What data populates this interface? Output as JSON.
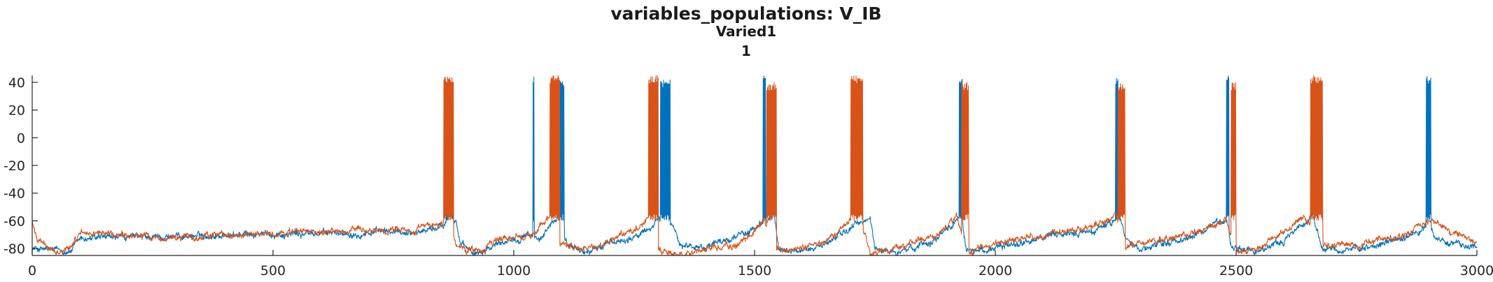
{
  "chart_data": {
    "type": "line",
    "title": "variables_populations: V_IB",
    "subtitle": "Varied1",
    "subtitle2": "1",
    "xlabel": "",
    "ylabel": "",
    "xlim": [
      0,
      3000
    ],
    "ylim": [
      -85,
      45
    ],
    "x_ticks": [
      "0",
      "500",
      "1000",
      "1500",
      "2000",
      "2500",
      "3000"
    ],
    "y_ticks": [
      "40",
      "20",
      "0",
      "-20",
      "-40",
      "-60",
      "-80"
    ],
    "grid": false,
    "legend": "none",
    "series": [
      {
        "color": "#0072bd",
        "baseline": [
          [
            0,
            -80
          ],
          [
            80,
            -82
          ],
          [
            100,
            -73
          ],
          [
            300,
            -71
          ],
          [
            600,
            -69
          ],
          [
            800,
            -68
          ],
          [
            850,
            -64
          ],
          [
            870,
            -57
          ],
          [
            880,
            -60
          ],
          [
            890,
            -78
          ],
          [
            920,
            -83
          ],
          [
            980,
            -74
          ],
          [
            1040,
            -71
          ],
          [
            1060,
            -73
          ],
          [
            1080,
            -62
          ],
          [
            1095,
            -57
          ],
          [
            1110,
            -77
          ],
          [
            1150,
            -83
          ],
          [
            1200,
            -76
          ],
          [
            1260,
            -71
          ],
          [
            1300,
            -60
          ],
          [
            1330,
            -63
          ],
          [
            1350,
            -78
          ],
          [
            1400,
            -79
          ],
          [
            1500,
            -66
          ],
          [
            1540,
            -56
          ],
          [
            1550,
            -80
          ],
          [
            1600,
            -82
          ],
          [
            1650,
            -76
          ],
          [
            1700,
            -65
          ],
          [
            1740,
            -58
          ],
          [
            1750,
            -80
          ],
          [
            1800,
            -83
          ],
          [
            1880,
            -72
          ],
          [
            1930,
            -56
          ],
          [
            1940,
            -82
          ],
          [
            2000,
            -80
          ],
          [
            2100,
            -72
          ],
          [
            2200,
            -68
          ],
          [
            2260,
            -58
          ],
          [
            2270,
            -72
          ],
          [
            2300,
            -81
          ],
          [
            2400,
            -72
          ],
          [
            2480,
            -58
          ],
          [
            2490,
            -78
          ],
          [
            2550,
            -82
          ],
          [
            2600,
            -74
          ],
          [
            2660,
            -56
          ],
          [
            2680,
            -80
          ],
          [
            2750,
            -82
          ],
          [
            2850,
            -72
          ],
          [
            2900,
            -64
          ],
          [
            2920,
            -74
          ],
          [
            3000,
            -80
          ]
        ],
        "bursts": [
          [
            860,
            875,
            40
          ],
          [
            1040,
            1043,
            45
          ],
          [
            1090,
            1105,
            42
          ],
          [
            1305,
            1325,
            42
          ],
          [
            1518,
            1523,
            45
          ],
          [
            1925,
            1932,
            44
          ],
          [
            2250,
            2255,
            44
          ],
          [
            2480,
            2485,
            45
          ],
          [
            2895,
            2905,
            45
          ]
        ]
      },
      {
        "color": "#d95319",
        "baseline": [
          [
            0,
            -60
          ],
          [
            10,
            -75
          ],
          [
            50,
            -82
          ],
          [
            80,
            -80
          ],
          [
            100,
            -68
          ],
          [
            300,
            -72
          ],
          [
            600,
            -68
          ],
          [
            800,
            -66
          ],
          [
            850,
            -62
          ],
          [
            860,
            -57
          ],
          [
            880,
            -78
          ],
          [
            920,
            -82
          ],
          [
            980,
            -73
          ],
          [
            1040,
            -70
          ],
          [
            1060,
            -62
          ],
          [
            1080,
            -57
          ],
          [
            1095,
            -76
          ],
          [
            1150,
            -80
          ],
          [
            1200,
            -75
          ],
          [
            1260,
            -65
          ],
          [
            1280,
            -57
          ],
          [
            1300,
            -80
          ],
          [
            1350,
            -84
          ],
          [
            1400,
            -80
          ],
          [
            1480,
            -75
          ],
          [
            1520,
            -58
          ],
          [
            1540,
            -82
          ],
          [
            1600,
            -80
          ],
          [
            1650,
            -74
          ],
          [
            1700,
            -60
          ],
          [
            1720,
            -57
          ],
          [
            1740,
            -83
          ],
          [
            1800,
            -79
          ],
          [
            1880,
            -70
          ],
          [
            1920,
            -57
          ],
          [
            1940,
            -84
          ],
          [
            2000,
            -76
          ],
          [
            2100,
            -70
          ],
          [
            2200,
            -64
          ],
          [
            2250,
            -57
          ],
          [
            2270,
            -78
          ],
          [
            2300,
            -76
          ],
          [
            2400,
            -70
          ],
          [
            2480,
            -60
          ],
          [
            2500,
            -82
          ],
          [
            2550,
            -78
          ],
          [
            2600,
            -68
          ],
          [
            2640,
            -56
          ],
          [
            2680,
            -77
          ],
          [
            2750,
            -76
          ],
          [
            2850,
            -70
          ],
          [
            2900,
            -60
          ],
          [
            2930,
            -65
          ],
          [
            3000,
            -75
          ]
        ],
        "bursts": [
          [
            855,
            875,
            45
          ],
          [
            1075,
            1095,
            45
          ],
          [
            1280,
            1300,
            45
          ],
          [
            1525,
            1545,
            40
          ],
          [
            1700,
            1725,
            45
          ],
          [
            1930,
            1945,
            40
          ],
          [
            2255,
            2270,
            40
          ],
          [
            2490,
            2500,
            40
          ],
          [
            2655,
            2680,
            45
          ]
        ]
      }
    ]
  }
}
